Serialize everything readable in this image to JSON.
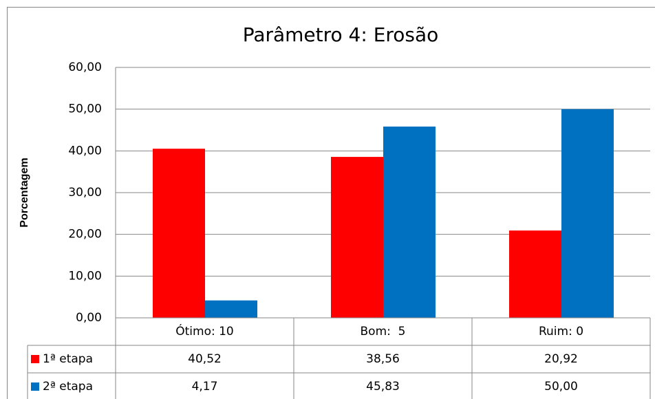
{
  "chart_data": {
    "type": "bar",
    "title": "Parâmetro 4: Erosão",
    "y_label": "Porcentagem",
    "categories": [
      "Ótimo: 10",
      "Bom:  5",
      "Ruim: 0"
    ],
    "series": [
      {
        "name": "1ª etapa",
        "color": "#ff0000",
        "values": [
          40.52,
          38.56,
          20.92
        ],
        "value_labels": [
          "40,52",
          "38,56",
          "20,92"
        ]
      },
      {
        "name": "2ª etapa",
        "color": "#0070c0",
        "values": [
          4.17,
          45.83,
          50.0
        ],
        "value_labels": [
          "4,17",
          "45,83",
          "50,00"
        ]
      }
    ],
    "ylim": [
      0,
      60
    ],
    "yticks": [
      {
        "value": 0,
        "label": "0,00"
      },
      {
        "value": 10,
        "label": "10,00"
      },
      {
        "value": 20,
        "label": "20,00"
      },
      {
        "value": 30,
        "label": "30,00"
      },
      {
        "value": 40,
        "label": "40,00"
      },
      {
        "value": 50,
        "label": "50,00"
      },
      {
        "value": 60,
        "label": "60,00"
      }
    ],
    "grid": true
  }
}
